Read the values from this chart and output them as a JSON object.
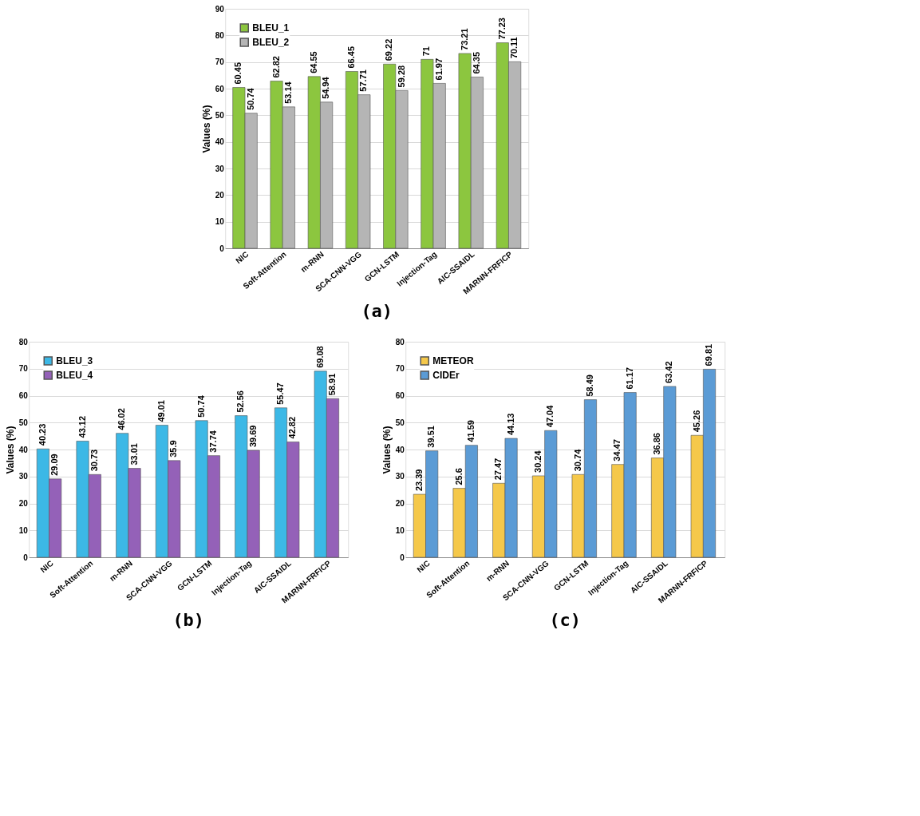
{
  "chart_data": [
    {
      "type": "bar",
      "title": "(a)",
      "ylabel": "Values (%)",
      "categories": [
        "NIC",
        "Soft-Attention",
        "m-RNN",
        "SCA-CNN-VGG",
        "GCN-LSTM",
        "Injection-Tag",
        "AIC-SSAIDL",
        "MARNN-FRFICP"
      ],
      "series": [
        {
          "name": "BLEU_1",
          "color": "#8cc63f",
          "values": [
            60.45,
            62.82,
            64.55,
            66.45,
            69.22,
            71,
            73.21,
            77.23
          ]
        },
        {
          "name": "BLEU_2",
          "color": "#b5b5b5",
          "values": [
            50.74,
            53.14,
            54.94,
            57.71,
            59.28,
            61.97,
            64.35,
            70.11
          ]
        }
      ],
      "ylim": [
        0,
        90
      ],
      "yticks": [
        0,
        10,
        20,
        30,
        40,
        50,
        60,
        70,
        80,
        90
      ],
      "grid": "y",
      "legend": "top left",
      "data_labels": true
    },
    {
      "type": "bar",
      "title": "(b)",
      "ylabel": "Values (%)",
      "categories": [
        "NIC",
        "Soft-Attention",
        "m-RNN",
        "SCA-CNN-VGG",
        "GCN-LSTM",
        "Injection-Tag",
        "AIC-SSAIDL",
        "MARNN-FRFICP"
      ],
      "series": [
        {
          "name": "BLEU_3",
          "color": "#3cb8e6",
          "values": [
            40.23,
            43.12,
            46.02,
            49.01,
            50.74,
            52.56,
            55.47,
            69.08
          ]
        },
        {
          "name": "BLEU_4",
          "color": "#9461b8",
          "values": [
            29.09,
            30.73,
            33.01,
            35.9,
            37.74,
            39.69,
            42.82,
            58.91
          ]
        }
      ],
      "ylim": [
        0,
        80
      ],
      "yticks": [
        0,
        10,
        20,
        30,
        40,
        50,
        60,
        70,
        80
      ],
      "grid": "y",
      "legend": "top left",
      "data_labels": true
    },
    {
      "type": "bar",
      "title": "(c)",
      "ylabel": "Values (%)",
      "categories": [
        "NIC",
        "Soft-Attention",
        "m-RNN",
        "SCA-CNN-VGG",
        "GCN-LSTM",
        "Injection-Tag",
        "AIC-SSAIDL",
        "MARNN-FRFICP"
      ],
      "series": [
        {
          "name": "METEOR",
          "color": "#f5c84a",
          "values": [
            23.39,
            25.6,
            27.47,
            30.24,
            30.74,
            34.47,
            36.86,
            45.26
          ]
        },
        {
          "name": "CIDEr",
          "color": "#5b9bd5",
          "values": [
            39.51,
            41.59,
            44.13,
            47.04,
            58.49,
            61.17,
            63.42,
            69.81
          ]
        }
      ],
      "ylim": [
        0,
        80
      ],
      "yticks": [
        0,
        10,
        20,
        30,
        40,
        50,
        60,
        70,
        80
      ],
      "grid": "y",
      "legend": "top left",
      "data_labels": true
    }
  ]
}
